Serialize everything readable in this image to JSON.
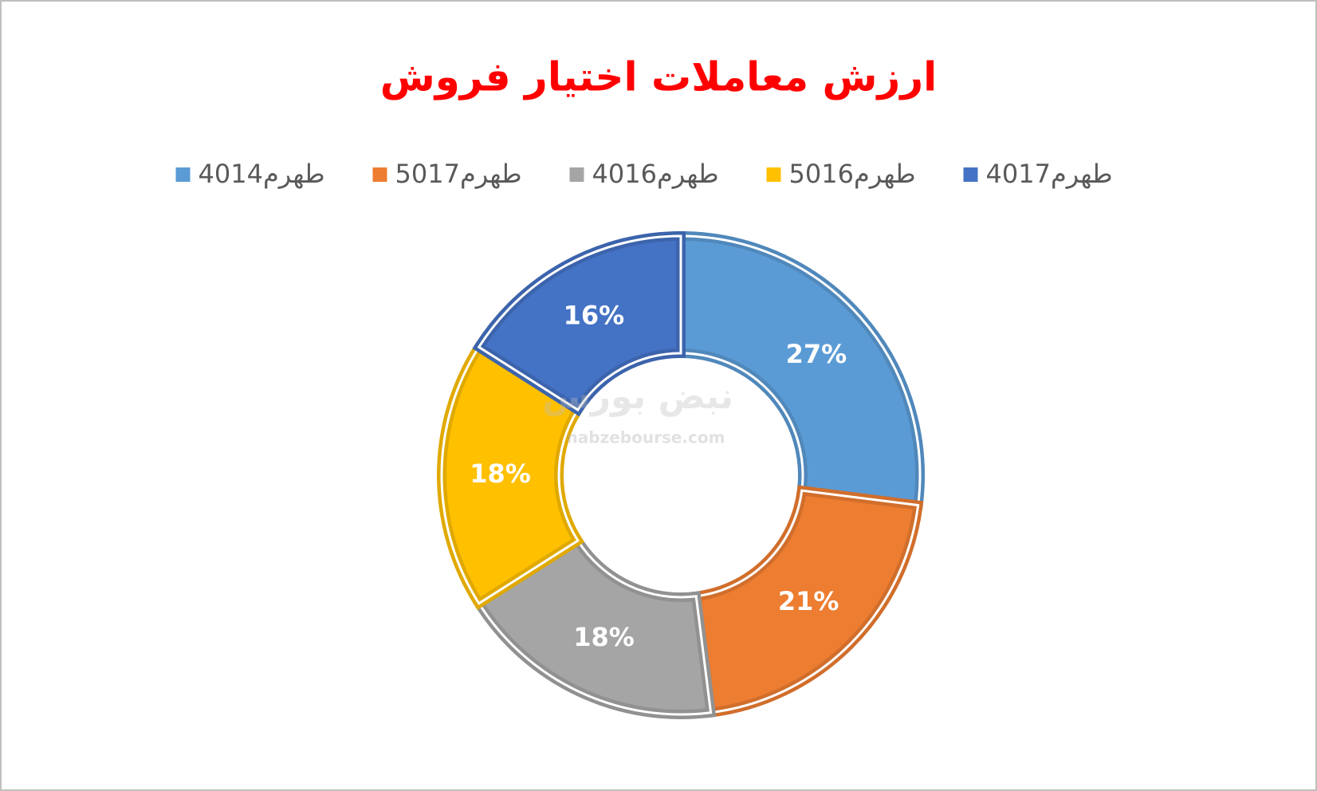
{
  "chart_data": {
    "type": "donut",
    "title": "ارزش معاملات اختیار فروش",
    "categories": [
      "طهرم4014",
      "طهرم5017",
      "طهرم4016",
      "طهرم5016",
      "طهرم4017"
    ],
    "values": [
      27,
      21,
      18,
      18,
      16
    ],
    "value_labels": [
      "27%",
      "21%",
      "18%",
      "18%",
      "16%"
    ],
    "colors": [
      "#5b9bd5",
      "#ed7d31",
      "#a5a5a5",
      "#ffc000",
      "#4472c4"
    ],
    "legend": "top",
    "watermark": [
      "نبض بورس",
      "nabzebourse.com"
    ]
  }
}
